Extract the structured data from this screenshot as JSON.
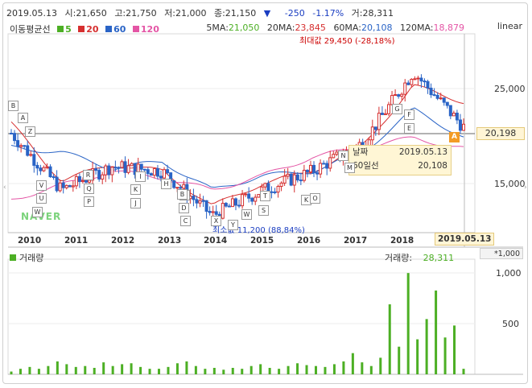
{
  "header": {
    "date": "2019.05.13",
    "open_label": "시:",
    "open": "21,650",
    "high_label": "고:",
    "high": "21,750",
    "low_label": "저:",
    "low": "21,000",
    "close_label": "종:",
    "close": "21,150",
    "change_icon": "down-triangle-icon",
    "change_arrow": "▼",
    "change": "-250",
    "change_pct": "-1.17%",
    "volume_label": "거:",
    "volume": "28,311"
  },
  "moving_avg_legend": {
    "title": "이동평균선",
    "items": [
      {
        "label": "5",
        "color": "#4caf24"
      },
      {
        "label": "20",
        "color": "#d62f2f"
      },
      {
        "label": "60",
        "color": "#2a64c6"
      },
      {
        "label": "120",
        "color": "#e455a5"
      }
    ]
  },
  "moving_avg_values": {
    "ma5_label": "5MA:",
    "ma5": "21,050",
    "ma20_label": "20MA:",
    "ma20": "23,845",
    "ma60_label": "60MA:",
    "ma60": "20,108",
    "ma120_label": "120MA:",
    "ma120": "18,879"
  },
  "scale_mode": "linear",
  "y_axis": {
    "labels": [
      "25,000",
      "20,198",
      "15,000"
    ],
    "current": "20,198"
  },
  "x_axis": {
    "labels": [
      "2010",
      "2011",
      "2012",
      "2013",
      "2014",
      "2015",
      "2016",
      "2017",
      "2018"
    ],
    "last_date": "2019.05.13"
  },
  "annotations": {
    "max_label": "최대값 29,450 (-28,18%)",
    "min_label": "최소값 11,200 (88,84%)",
    "watermark": "NAVER"
  },
  "tooltip": {
    "date_label": "날짜",
    "date_value": "2019.05.13",
    "ma60_label": "60일선",
    "ma60_value": "20,108"
  },
  "volume": {
    "title": "거래량",
    "right_label": "거래량:",
    "right_value": "28,311",
    "unit": "*1,000",
    "y_labels": [
      "1,000",
      "500"
    ]
  },
  "event_markers": [
    "B",
    "A",
    "Z",
    "V",
    "U",
    "W",
    "R",
    "Q",
    "P",
    "I",
    "K",
    "J",
    "H",
    "E",
    "D",
    "C",
    "B",
    "X",
    "Y",
    "W",
    "T",
    "S",
    "K",
    "O",
    "N",
    "M",
    "G",
    "F",
    "E",
    "A"
  ],
  "colors": {
    "up": "#d62f2f",
    "down": "#2a64c6",
    "volume": "#4caf24",
    "ma5": "#4caf24",
    "ma20": "#d62f2f",
    "ma60": "#2a64c6",
    "ma120": "#e455a5"
  },
  "chart_data": {
    "type": "line",
    "title": "",
    "xlabel": "",
    "ylabel": "",
    "x": [
      "2010",
      "2011",
      "2012",
      "2013",
      "2014",
      "2015",
      "2016",
      "2017",
      "2018",
      "2019.05"
    ],
    "ylim": [
      10000,
      31000
    ],
    "series": [
      {
        "name": "종가",
        "values": [
          20500,
          14500,
          17000,
          16500,
          11800,
          14500,
          16500,
          19500,
          27000,
          21150
        ]
      },
      {
        "name": "20",
        "values": [
          21500,
          15500,
          17200,
          16500,
          12800,
          15200,
          16500,
          19200,
          25500,
          23845
        ]
      },
      {
        "name": "60",
        "values": [
          19000,
          18500,
          16800,
          17500,
          14500,
          16000,
          16500,
          18500,
          23000,
          20108
        ]
      },
      {
        "name": "120",
        "values": [
          13500,
          15000,
          16500,
          15800,
          14500,
          16000,
          18000,
          19000,
          20000,
          18879
        ]
      }
    ],
    "volume_ylim": [
      0,
      1250
    ],
    "volume_values": [
      30,
      60,
      80,
      60,
      90,
      140,
      110,
      80,
      90,
      70,
      130,
      90,
      110,
      120,
      80,
      60,
      60,
      80,
      120,
      140,
      90,
      60,
      70,
      50,
      70,
      60,
      90,
      110,
      70,
      60,
      90,
      120,
      100,
      90,
      80,
      110,
      140,
      230,
      130,
      90,
      180,
      760,
      300,
      1100,
      380,
      600,
      910,
      400,
      530,
      60
    ]
  }
}
